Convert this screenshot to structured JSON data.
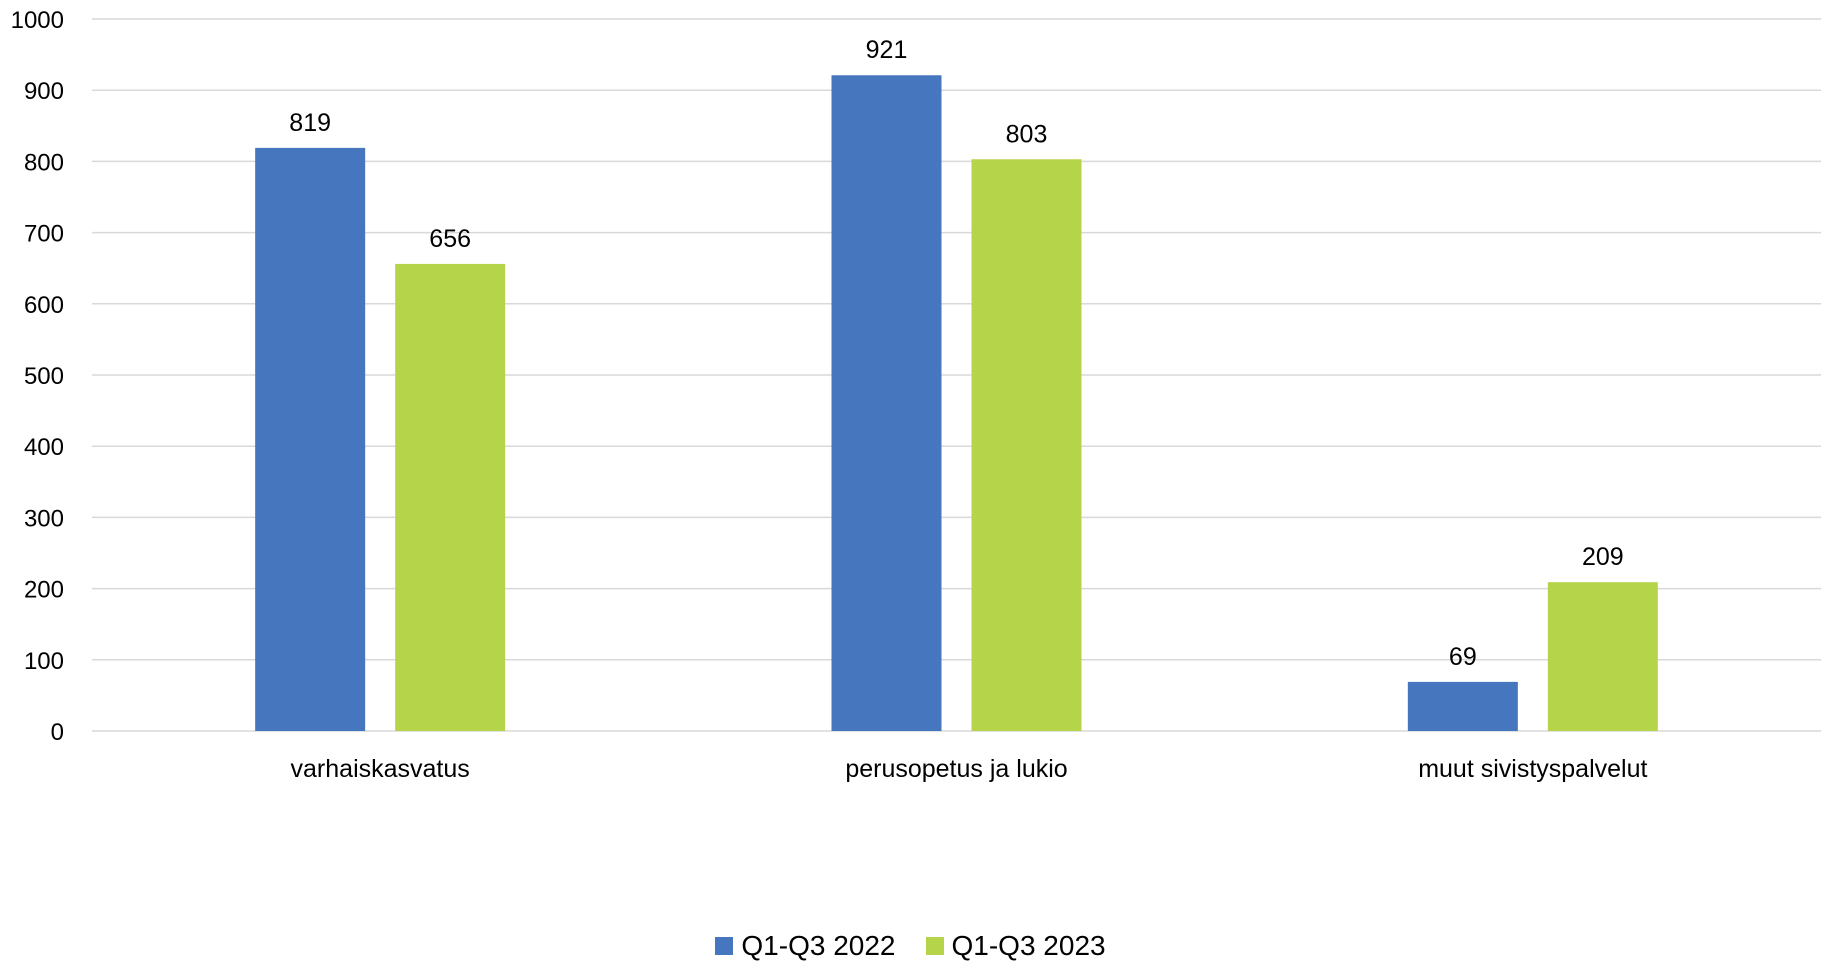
{
  "chart_data": {
    "type": "bar",
    "title": "",
    "xlabel": "",
    "ylabel": "",
    "categories": [
      "varhaiskasvatus",
      "perusopetus ja lukio",
      "muut sivistyspalvelut"
    ],
    "series": [
      {
        "name": "Q1-Q3 2022",
        "values": [
          819,
          921,
          69
        ],
        "color": "#4677BE"
      },
      {
        "name": "Q1-Q3 2023",
        "values": [
          656,
          803,
          209
        ],
        "color": "#B6D449"
      }
    ],
    "ylim": [
      0,
      1000
    ],
    "yticks": [
      0,
      100,
      200,
      300,
      400,
      500,
      600,
      700,
      800,
      900,
      1000
    ],
    "grid": true,
    "gridColor": "#D9D9D9",
    "legend_position": "bottom",
    "data_labels": true
  }
}
